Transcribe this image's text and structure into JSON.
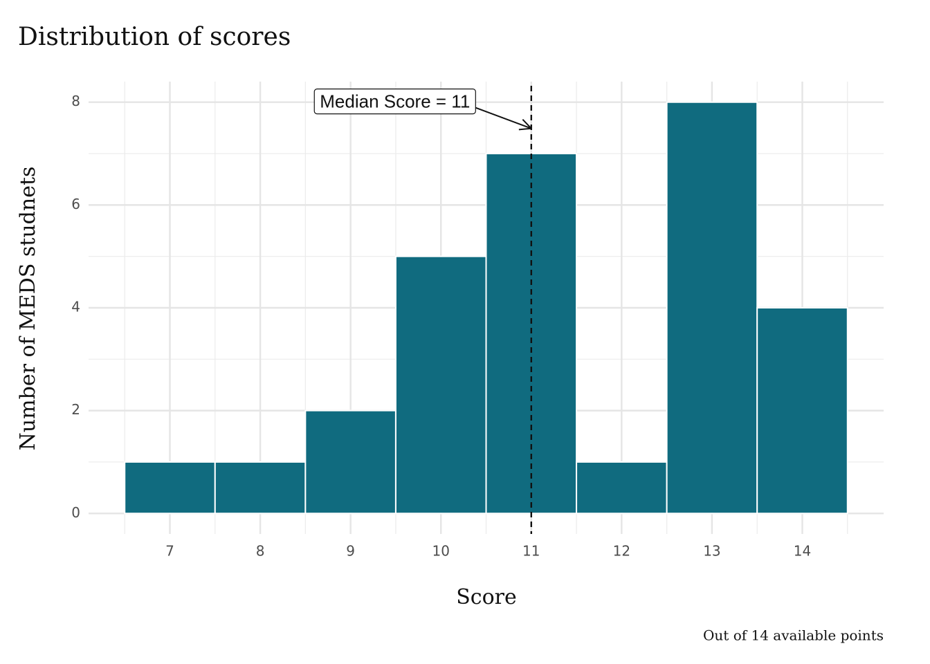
{
  "chart_data": {
    "type": "histogram",
    "title": "Distribution of scores",
    "x_label": "Score",
    "y_label": "Number of MEDS studnets",
    "caption": "Out of 14 available points",
    "bins": [
      6.5,
      7.5,
      8.5,
      9.5,
      10.5,
      11.5,
      12.5,
      13.5,
      14.5
    ],
    "values": [
      1,
      1,
      2,
      5,
      7,
      1,
      8,
      4
    ],
    "color": "#106b7f",
    "xlim": [
      6.1,
      14.9
    ],
    "ylim": [
      -0.4,
      8.4
    ],
    "xticks": [
      7,
      8,
      9,
      10,
      11,
      12,
      13,
      14
    ],
    "yticks": [
      0,
      2,
      4,
      6,
      8
    ],
    "grid": true,
    "median": 11,
    "annotation": "Median Score = 11"
  }
}
